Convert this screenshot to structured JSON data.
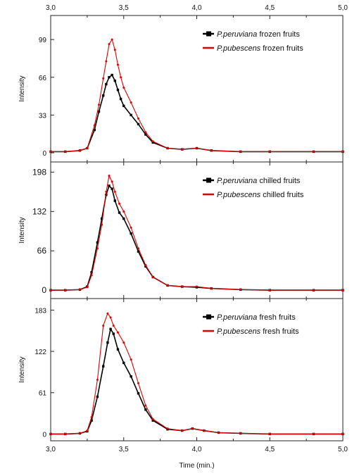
{
  "chart_data": [
    {
      "type": "line",
      "title": "",
      "xlabel": "",
      "ylabel": "Intensity",
      "xlim": [
        3.0,
        5.0
      ],
      "ylim": [
        -8,
        120
      ],
      "yticks": [
        0,
        33,
        66,
        99
      ],
      "ytick_labels": [
        "0",
        "33",
        "66",
        "99"
      ],
      "xtick_labels_top": [
        "3,0",
        "3,5",
        "4,0",
        "4,5",
        "5,0"
      ],
      "legend_placement": "top-right",
      "series": [
        {
          "name_italic": "P.peruviana",
          "name_rest": " frozen fruits",
          "color": "#000000",
          "x": [
            3.0,
            3.1,
            3.2,
            3.25,
            3.3,
            3.33,
            3.36,
            3.38,
            3.4,
            3.42,
            3.44,
            3.46,
            3.48,
            3.5,
            3.55,
            3.6,
            3.65,
            3.7,
            3.8,
            3.9,
            4.0,
            4.1,
            4.3,
            4.5,
            4.8,
            5.0
          ],
          "y": [
            1,
            1,
            2,
            4,
            20,
            36,
            50,
            60,
            66,
            68,
            63,
            55,
            47,
            41,
            33,
            25,
            16,
            9,
            4,
            3,
            4,
            2,
            1,
            1,
            1,
            1
          ]
        },
        {
          "name_italic": "P.pubescens",
          "name_rest": " frozen fruits",
          "color": "#e00000",
          "x": [
            3.0,
            3.1,
            3.2,
            3.25,
            3.3,
            3.33,
            3.36,
            3.38,
            3.4,
            3.42,
            3.44,
            3.46,
            3.48,
            3.5,
            3.55,
            3.6,
            3.65,
            3.7,
            3.8,
            3.9,
            4.0,
            4.1,
            4.3,
            4.5,
            4.8,
            5.0
          ],
          "y": [
            1,
            1,
            2,
            4,
            24,
            42,
            65,
            80,
            95,
            99,
            90,
            77,
            66,
            57,
            44,
            30,
            18,
            10,
            4,
            3,
            4,
            2,
            1,
            1,
            1,
            1
          ]
        }
      ]
    },
    {
      "type": "line",
      "title": "",
      "xlabel": "",
      "ylabel": "Intensity",
      "xlim": [
        3.0,
        5.0
      ],
      "ylim": [
        -14,
        215
      ],
      "yticks": [
        0,
        66,
        132,
        198
      ],
      "ytick_labels": [
        "0",
        "66",
        "132",
        "198"
      ],
      "legend_placement": "top-right",
      "series": [
        {
          "name_italic": "P.peruviana",
          "name_rest": " chilled fruits",
          "color": "#000000",
          "x": [
            3.0,
            3.1,
            3.2,
            3.25,
            3.28,
            3.32,
            3.35,
            3.38,
            3.4,
            3.42,
            3.44,
            3.47,
            3.5,
            3.55,
            3.6,
            3.65,
            3.7,
            3.8,
            3.9,
            4.0,
            4.1,
            4.3,
            4.5,
            4.8,
            5.0
          ],
          "y": [
            0,
            0,
            1,
            6,
            30,
            80,
            120,
            160,
            175,
            170,
            150,
            130,
            120,
            95,
            65,
            40,
            22,
            8,
            6,
            5,
            3,
            1,
            0,
            0,
            0
          ]
        },
        {
          "name_italic": "P.pubescens",
          "name_rest": " chilled fruits",
          "color": "#e00000",
          "x": [
            3.0,
            3.1,
            3.2,
            3.25,
            3.28,
            3.32,
            3.35,
            3.38,
            3.4,
            3.42,
            3.44,
            3.47,
            3.5,
            3.55,
            3.6,
            3.65,
            3.7,
            3.8,
            3.9,
            4.0,
            4.1,
            4.3,
            4.5,
            4.8,
            5.0
          ],
          "y": [
            0,
            0,
            1,
            5,
            25,
            70,
            110,
            165,
            192,
            182,
            165,
            145,
            132,
            105,
            70,
            42,
            22,
            8,
            6,
            6,
            3,
            1,
            0,
            0,
            0
          ]
        }
      ]
    },
    {
      "type": "line",
      "title": "",
      "xlabel": "Time (min.)",
      "ylabel": "Intensity",
      "xlim": [
        3.0,
        5.0
      ],
      "ylim": [
        -10,
        200
      ],
      "yticks": [
        0,
        61,
        122,
        183
      ],
      "ytick_labels": [
        "0",
        "61",
        "122",
        "183"
      ],
      "xtick_labels_bottom": [
        "3,0",
        "3,5",
        "4,0",
        "4,5",
        "5,0"
      ],
      "legend_placement": "top-right",
      "series": [
        {
          "name_italic": "P.peruviana",
          "name_rest": " fresh fruits",
          "color": "#000000",
          "x": [
            3.0,
            3.1,
            3.2,
            3.25,
            3.28,
            3.32,
            3.36,
            3.39,
            3.41,
            3.43,
            3.46,
            3.5,
            3.55,
            3.6,
            3.65,
            3.7,
            3.8,
            3.9,
            3.97,
            4.05,
            4.15,
            4.3,
            4.5,
            4.8,
            5.0
          ],
          "y": [
            0,
            0,
            1,
            4,
            20,
            55,
            100,
            135,
            155,
            148,
            125,
            105,
            85,
            60,
            36,
            20,
            7,
            5,
            8,
            5,
            2,
            1,
            0,
            0,
            0
          ]
        },
        {
          "name_italic": "P.pubescens",
          "name_rest": " fresh fruits",
          "color": "#e00000",
          "x": [
            3.0,
            3.1,
            3.2,
            3.25,
            3.28,
            3.32,
            3.36,
            3.39,
            3.41,
            3.43,
            3.46,
            3.5,
            3.55,
            3.6,
            3.65,
            3.7,
            3.8,
            3.9,
            3.97,
            4.05,
            4.15,
            4.3,
            4.5,
            4.8,
            5.0
          ],
          "y": [
            0,
            0,
            1,
            5,
            25,
            80,
            160,
            178,
            172,
            160,
            150,
            135,
            110,
            75,
            42,
            22,
            8,
            5,
            8,
            5,
            2,
            1,
            0,
            0,
            0
          ]
        }
      ]
    }
  ]
}
